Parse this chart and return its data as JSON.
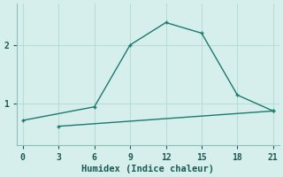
{
  "xlabel": "Humidex (Indice chaleur)",
  "background_color": "#d6efec",
  "grid_color": "#b8ddd9",
  "line_color": "#1a7a6e",
  "line1_x": [
    0,
    6,
    9,
    12,
    15,
    18,
    21
  ],
  "line1_y": [
    0.72,
    0.95,
    2.0,
    2.38,
    2.2,
    1.15,
    0.88
  ],
  "line2_x": [
    3,
    21
  ],
  "line2_y": [
    0.62,
    0.88
  ],
  "xlim": [
    -0.5,
    21.5
  ],
  "ylim": [
    0.3,
    2.7
  ],
  "xticks": [
    0,
    3,
    6,
    9,
    12,
    15,
    18,
    21
  ],
  "yticks": [
    1,
    2
  ],
  "markersize": 3.5,
  "linewidth": 1.0
}
